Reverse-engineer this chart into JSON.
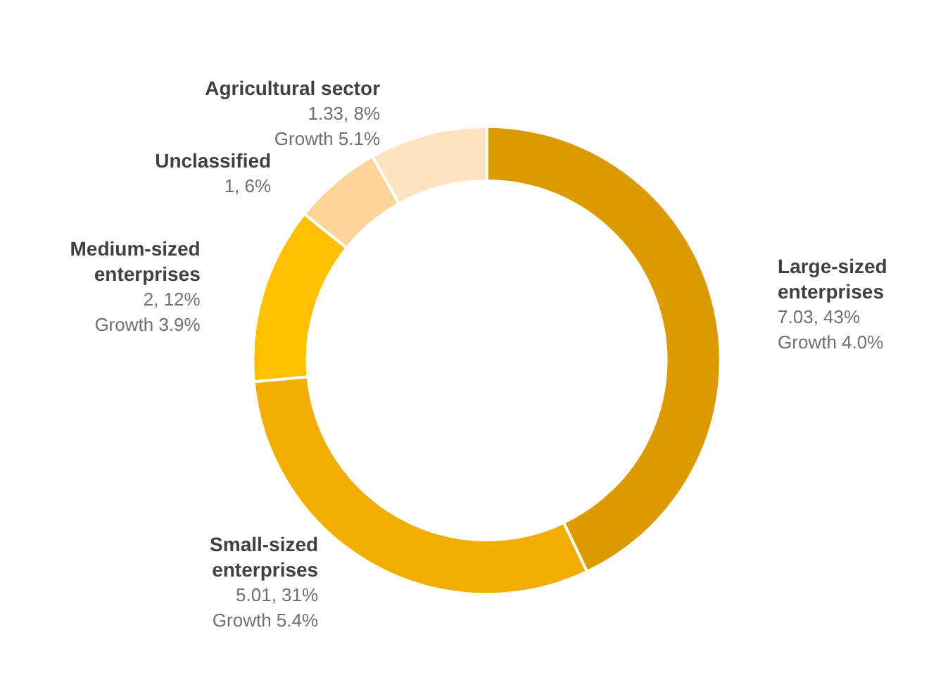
{
  "chart_data": {
    "type": "donut",
    "categories": [
      "Large-sized enterprises",
      "Small-sized enterprises",
      "Medium-sized enterprises",
      "Unclassified",
      "Agricultural sector"
    ],
    "values": [
      7.03,
      5.01,
      2,
      1,
      1.33
    ],
    "colors": [
      "#dc9a00",
      "#f2ae00",
      "#ffc000",
      "#fdd49a",
      "#fde3bf"
    ],
    "value_labels": [
      "7.03, 43%\nGrowth 4.0%",
      "5.01, 31%\nGrowth 5.4%",
      "2, 12%\nGrowth 3.9%",
      "1, 6%",
      "1.33, 8%\nGrowth 5.1%"
    ],
    "legend": false
  }
}
